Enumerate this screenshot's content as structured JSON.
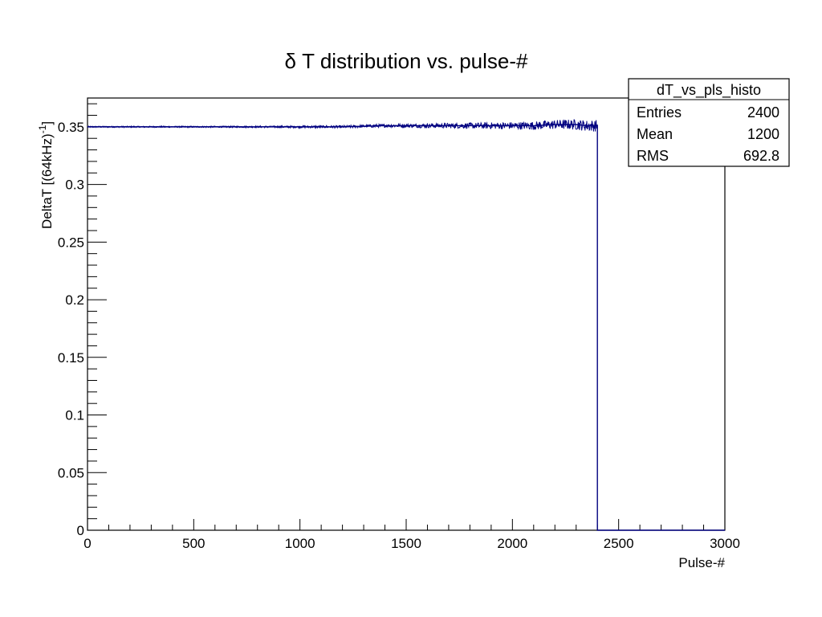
{
  "chart_data": {
    "type": "histogram",
    "title": "δ T distribution vs. pulse-#",
    "xlabel": "Pulse-#",
    "ylabel": "DeltaT [(64kHz)",
    "ylabel_superscript": "-1",
    "ylabel_suffix": "]",
    "xlim": [
      0,
      3000
    ],
    "ylim": [
      0,
      0.375
    ],
    "xticks": [
      0,
      500,
      1000,
      1500,
      2000,
      2500,
      3000
    ],
    "yticks": [
      0,
      0.05,
      0.1,
      0.15,
      0.2,
      0.25,
      0.3,
      0.35
    ],
    "xtick_labels": [
      "0",
      "500",
      "1000",
      "1500",
      "2000",
      "2500",
      "3000"
    ],
    "ytick_labels": [
      "0",
      "0.05",
      "0.1",
      "0.15",
      "0.2",
      "0.25",
      "0.3",
      "0.35"
    ],
    "grid": false,
    "line_color": "#000080",
    "series": [
      {
        "x": [
          0,
          200,
          400,
          600,
          800,
          1000,
          1200,
          1400,
          1600,
          1800,
          2000,
          2100,
          2200,
          2300,
          2350,
          2400,
          2400,
          3000
        ],
        "y": [
          0.35,
          0.35,
          0.35,
          0.35,
          0.35,
          0.35,
          0.35,
          0.351,
          0.351,
          0.351,
          0.351,
          0.351,
          0.352,
          0.352,
          0.351,
          0.351,
          0,
          0
        ]
      }
    ],
    "stats_box": {
      "title": "dT_vs_pls_histo",
      "placement": "top-right",
      "rows": [
        {
          "label": "Entries",
          "value": "2400"
        },
        {
          "label": "Mean",
          "value": "1200"
        },
        {
          "label": "RMS",
          "value": "692.8"
        }
      ]
    }
  }
}
